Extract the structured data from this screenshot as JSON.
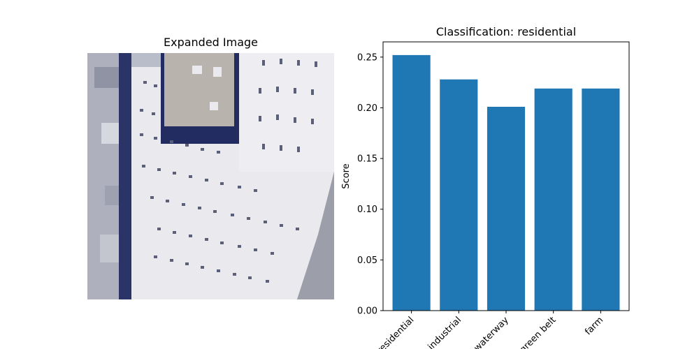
{
  "left_panel": {
    "title": "Expanded Image"
  },
  "chart_data": {
    "type": "bar",
    "title": "Classification: residential",
    "xlabel": "",
    "ylabel": "Score",
    "categories": [
      "residential",
      "industrial",
      "waterway",
      "green belt",
      "farm"
    ],
    "values": [
      0.252,
      0.228,
      0.201,
      0.219,
      0.219
    ],
    "ylim": [
      0,
      0.265
    ],
    "yticks": [
      "0.00",
      "0.05",
      "0.10",
      "0.15",
      "0.20",
      "0.25"
    ],
    "bar_color": "#1f77b4",
    "grid": false
  }
}
